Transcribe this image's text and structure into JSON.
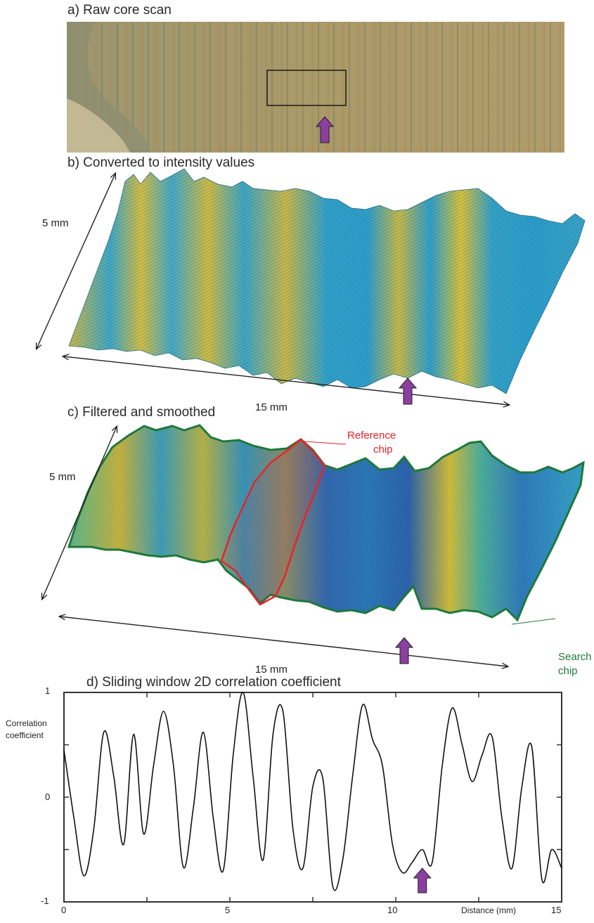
{
  "panels": {
    "a": {
      "title": "a) Raw core scan"
    },
    "b": {
      "title": "b) Converted to intensity values",
      "height_label": "5 mm",
      "width_label": "15 mm"
    },
    "c": {
      "title": "c) Filtered and smoothed",
      "height_label": "5 mm",
      "width_label": "15 mm",
      "reference_label_line1": "Reference",
      "reference_label_line2": "chip",
      "search_label_line1": "Search",
      "search_label_line2": "chip"
    },
    "d": {
      "title": "d) Sliding window 2D correlation coefficient"
    }
  },
  "colors": {
    "arrow_fill": "#8b3fa0",
    "reference_outline": "#e8232a",
    "search_outline": "#1f7a3a",
    "surface_yellow": "#d8c03a",
    "surface_cyan": "#2fa6c8",
    "surface_blue": "#2b4fa0"
  },
  "chart_data": {
    "type": "line",
    "title": "d) Sliding window 2D correlation coefficient",
    "xlabel": "Distance (mm)",
    "ylabel_line1": "Correlation",
    "ylabel_line2": "coefficient",
    "xlim": [
      0,
      15
    ],
    "ylim": [
      -1,
      1
    ],
    "x_ticks": [
      "0",
      "5",
      "10",
      "15"
    ],
    "y_ticks": [
      "1",
      "0",
      "-1"
    ],
    "marker_x": 10.8,
    "series": [
      {
        "x": [
          0,
          0.3,
          0.6,
          0.9,
          1.2,
          1.5,
          1.8,
          2.1,
          2.4,
          2.7,
          3.0,
          3.3,
          3.6,
          3.9,
          4.2,
          4.5,
          4.8,
          5.1,
          5.4,
          5.7,
          6.0,
          6.3,
          6.6,
          6.9,
          7.2,
          7.5,
          7.8,
          8.1,
          8.4,
          8.7,
          9.0,
          9.3,
          9.6,
          9.9,
          10.2,
          10.5,
          10.8,
          11.1,
          11.4,
          11.7,
          12.0,
          12.3,
          12.6,
          12.9,
          13.2,
          13.5,
          13.8,
          14.1,
          14.4,
          14.7,
          15.0
        ],
        "y": [
          0.45,
          -0.2,
          -0.75,
          -0.3,
          0.62,
          0.2,
          -0.45,
          0.6,
          -0.35,
          0.3,
          0.82,
          0.3,
          -0.67,
          -0.1,
          0.62,
          -0.2,
          -0.7,
          0.4,
          1.0,
          0.2,
          -0.6,
          0.6,
          0.82,
          -0.3,
          -0.68,
          0.1,
          0.18,
          -0.85,
          -0.6,
          0.2,
          0.88,
          0.55,
          0.3,
          -0.45,
          -0.72,
          -0.62,
          -0.5,
          -0.62,
          0.3,
          0.85,
          0.5,
          0.15,
          0.4,
          0.58,
          -0.2,
          -0.68,
          0.1,
          0.48,
          -0.78,
          -0.5,
          -0.68
        ]
      }
    ]
  }
}
